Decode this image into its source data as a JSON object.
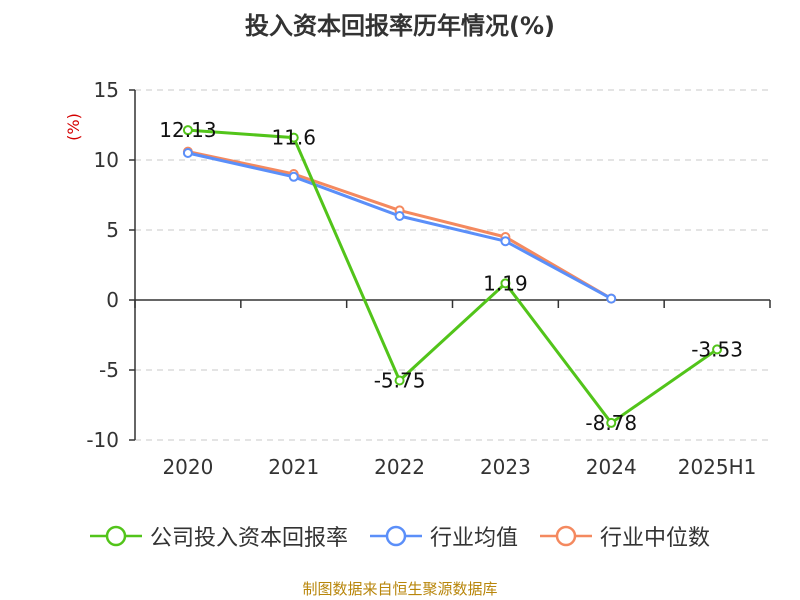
{
  "chart_data": {
    "type": "line",
    "title": "投入资本回报率历年情况(%)",
    "ylabel": "(%)",
    "categories": [
      "2020",
      "2021",
      "2022",
      "2023",
      "2024",
      "2025H1"
    ],
    "ylim": [
      -10,
      15
    ],
    "yticks": [
      15,
      10,
      5,
      0,
      -5,
      -10
    ],
    "grid": true,
    "legend_position": "bottom",
    "series": [
      {
        "name": "公司投入资本回报率",
        "color": "#52c41a",
        "values": [
          12.13,
          11.6,
          -5.75,
          1.19,
          -8.78,
          -3.53
        ],
        "labels": [
          "12.13",
          "11.6",
          "-5.75",
          "1.19",
          "-8.78",
          "-3.53"
        ]
      },
      {
        "name": "行业均值",
        "color": "#5b8ff9",
        "values": [
          10.5,
          8.8,
          6.0,
          4.2,
          0.1,
          null
        ]
      },
      {
        "name": "行业中位数",
        "color": "#f4895f",
        "values": [
          10.6,
          9.0,
          6.4,
          4.5,
          0.1,
          null
        ]
      }
    ]
  },
  "source": "制图数据来自恒生聚源数据库"
}
